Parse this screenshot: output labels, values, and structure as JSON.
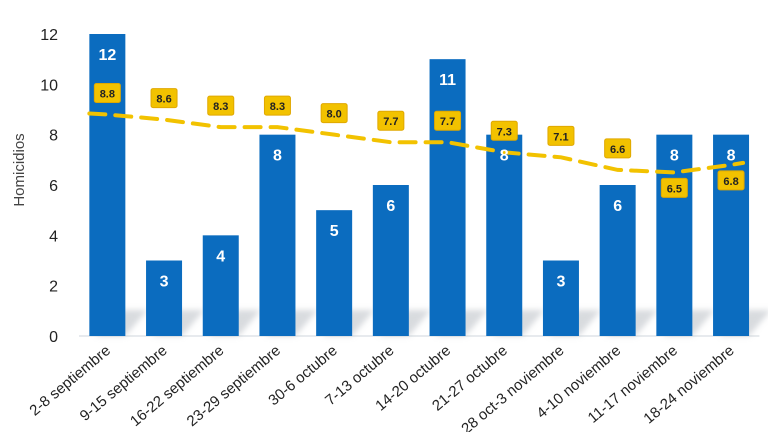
{
  "chart_data": {
    "type": "bar",
    "ylabel": "Homicidios",
    "ylim": [
      0,
      12
    ],
    "yticks": [
      0,
      2,
      4,
      6,
      8,
      10,
      12
    ],
    "grid": false,
    "categories": [
      "2-8 septiembre",
      "9-15 septiembre",
      "16-22 septiembre",
      "23-29 septiembre",
      "30-6 octubre",
      "7-13 octubre",
      "14-20 octubre",
      "21-27 octubre",
      "28 oct-3 noviembre",
      "4-10 noviembre",
      "11-17 noviembre",
      "18-24 noviembre"
    ],
    "series": [
      {
        "values": [
          12,
          3,
          4,
          8,
          5,
          6,
          11,
          8,
          3,
          6,
          8,
          8
        ],
        "color": "#0b6cbf"
      },
      {
        "values": [
          8.8,
          8.6,
          8.3,
          8.3,
          8.0,
          7.7,
          7.7,
          7.3,
          7.1,
          6.6,
          6.5,
          6.8
        ],
        "color": "#f2c200",
        "style": "dashed-trend"
      }
    ]
  }
}
